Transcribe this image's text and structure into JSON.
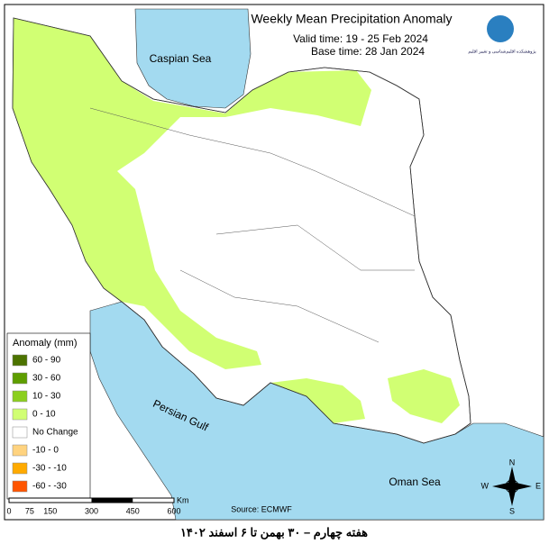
{
  "header": {
    "title": "Weekly Mean Precipitation Anomaly",
    "valid_time": "Valid time:  19 - 25 Feb 2024",
    "base_time": "Base time: 28 Jan 2024",
    "logo_text": "پژوهشکده اقلیم‌شناسی و تغییر اقلیم"
  },
  "labels": {
    "caspian": "Caspian Sea",
    "gulf": "Persian Gulf",
    "oman": "Oman Sea"
  },
  "legend": {
    "title": "Anomaly (mm)",
    "items": [
      {
        "label": "60 - 90",
        "color": "#4c7300"
      },
      {
        "label": "30 - 60",
        "color": "#5e9e00"
      },
      {
        "label": "10 - 30",
        "color": "#8ccf1f"
      },
      {
        "label": "0 - 10",
        "color": "#d1ff73"
      },
      {
        "label": "No Change",
        "color": "#ffffff"
      },
      {
        "label": "-10 - 0",
        "color": "#ffd37f"
      },
      {
        "label": "-30 - -10",
        "color": "#ffaa00"
      },
      {
        "label": "-60 - -30",
        "color": "#ff5500"
      }
    ]
  },
  "scale_bar": {
    "unit": "Km",
    "ticks": [
      "0",
      "75",
      "150",
      "300",
      "450",
      "600"
    ]
  },
  "compass": {
    "n": "N",
    "s": "S",
    "e": "E",
    "w": "W"
  },
  "source": "Source: ECMWF",
  "footer": "هفته چهارم – ۳۰ بهمن تا ۶ اسفند ۱۴۰۲"
}
